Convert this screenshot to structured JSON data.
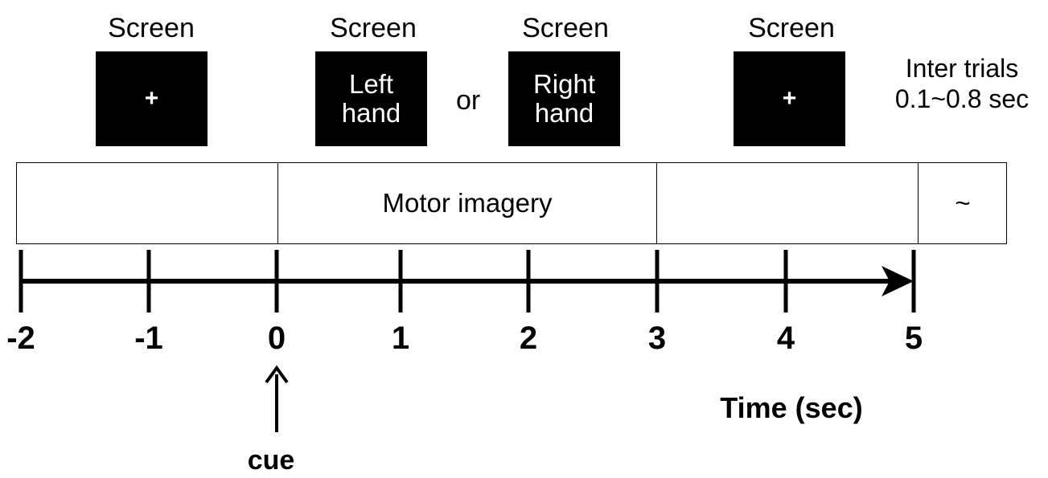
{
  "screens": [
    {
      "label": "Screen",
      "content": "+"
    },
    {
      "label": "Screen",
      "content_lines": [
        "Left",
        "hand"
      ]
    },
    {
      "label": "Screen",
      "content_lines": [
        "Right",
        "hand"
      ]
    },
    {
      "label": "Screen",
      "content": "+"
    }
  ],
  "or_label": "or",
  "inter_trials": {
    "line1": "Inter trials",
    "line2": "0.1~0.8 sec"
  },
  "timeline": {
    "motor_label": "Motor imagery",
    "tilde_label": "~"
  },
  "axis": {
    "ticks": [
      "-2",
      "-1",
      "0",
      "1",
      "2",
      "3",
      "4",
      "5"
    ],
    "time_label": "Time (sec)",
    "cue_label": "cue"
  },
  "colors": {
    "box": "#000000",
    "line": "#000000"
  }
}
